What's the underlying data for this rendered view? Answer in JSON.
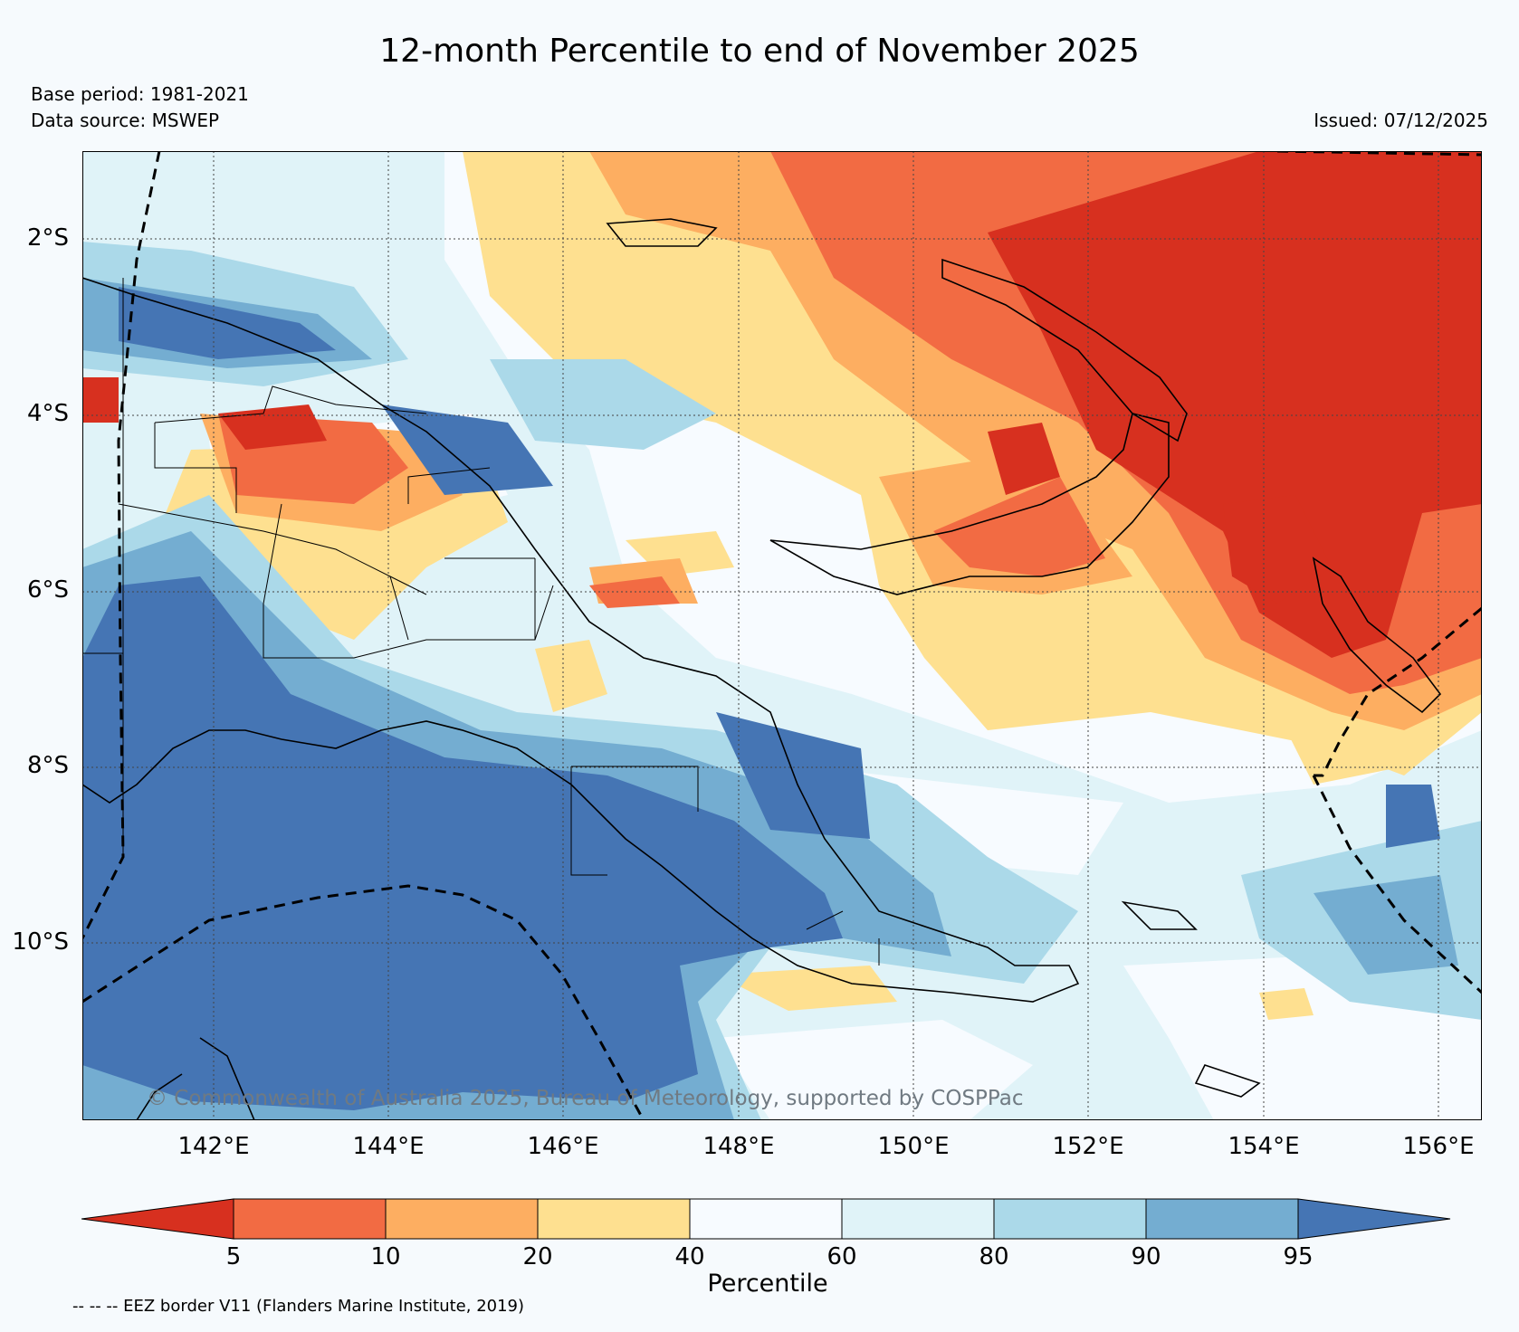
{
  "title": "12-month Percentile to end of November 2025",
  "base_period": "Base period: 1981-2021",
  "data_source": "Data source: MSWEP",
  "issued": "Issued: 07/12/2025",
  "map": {
    "latitude_labels": [
      "2°S",
      "4°S",
      "6°S",
      "8°S",
      "10°S"
    ],
    "longitude_labels": [
      "142°E",
      "144°E",
      "146°E",
      "148°E",
      "150°E",
      "152°E",
      "154°E",
      "156°E"
    ],
    "lon_range": [
      140.5,
      156.5
    ],
    "lat_range": [
      -0.9,
      -11.9
    ],
    "copyright": "© Commonwealth of Australia 2025, Bureau of Meteorology, supported by COSPPac"
  },
  "colorbar": {
    "label": "Percentile",
    "ticks": [
      "5",
      "10",
      "20",
      "40",
      "60",
      "80",
      "90",
      "95"
    ],
    "colors": [
      "#d7301f",
      "#f26b43",
      "#fdae61",
      "#fee090",
      "#f7fbff",
      "#e0f3f8",
      "#abd9e9",
      "#74add1",
      "#4575b4"
    ]
  },
  "legend_note": "-- -- -- EEZ border V11 (Flanders Marine Institute, 2019)"
}
